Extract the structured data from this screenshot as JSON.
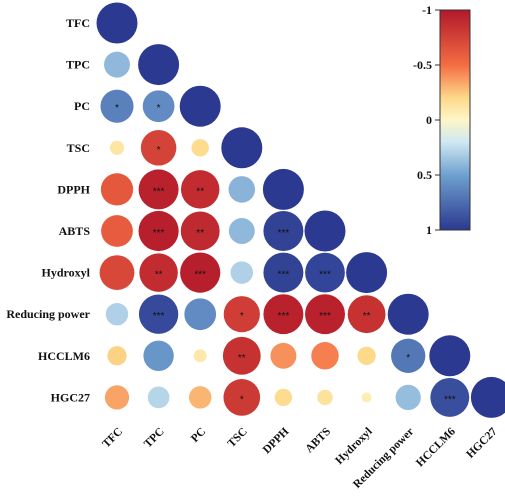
{
  "chart_data": {
    "type": "heatmap",
    "variables": [
      "TFC",
      "TPC",
      "PC",
      "TSC",
      "DPPH",
      "ABTS",
      "Hydroxyl",
      "Reducing power",
      "HCCLM6",
      "HGC27"
    ],
    "matrix": [
      [
        1
      ],
      [
        0.4,
        1
      ],
      [
        0.65,
        0.6,
        1
      ],
      [
        -0.12,
        -0.75,
        -0.18,
        1
      ],
      [
        -0.62,
        -0.95,
        -0.88,
        0.42,
        1
      ],
      [
        -0.6,
        -0.96,
        -0.9,
        0.4,
        0.95,
        1
      ],
      [
        -0.72,
        -0.88,
        -0.96,
        0.3,
        0.95,
        0.94,
        1
      ],
      [
        0.3,
        0.92,
        0.6,
        -0.78,
        -0.95,
        -0.95,
        -0.85,
        1
      ],
      [
        -0.22,
        0.55,
        -0.1,
        -0.85,
        -0.4,
        -0.45,
        -0.2,
        0.7,
        1
      ],
      [
        -0.35,
        0.28,
        -0.3,
        -0.8,
        -0.18,
        -0.14,
        -0.06,
        0.38,
        0.9,
        1
      ]
    ],
    "significance": [
      [
        ""
      ],
      [
        "",
        ""
      ],
      [
        "*",
        "*",
        ""
      ],
      [
        "",
        "*",
        "",
        ""
      ],
      [
        "",
        "***",
        "**",
        "",
        ""
      ],
      [
        "",
        "***",
        "**",
        "",
        "***",
        ""
      ],
      [
        "",
        "**",
        "***",
        "",
        "***",
        "***",
        ""
      ],
      [
        "",
        "***",
        "",
        "*",
        "***",
        "***",
        "**",
        ""
      ],
      [
        "",
        "",
        "",
        "**",
        "",
        "",
        "",
        "*",
        ""
      ],
      [
        "",
        "",
        "",
        "*",
        "",
        "",
        "",
        "",
        "***",
        ""
      ]
    ],
    "colorbar": {
      "ticks": [
        "-1",
        "-0.5",
        "0",
        "0.5",
        "1"
      ],
      "tick_values": [
        -1,
        -0.5,
        0,
        0.5,
        1
      ]
    },
    "colors": {
      "strong_positive": "#2b3990",
      "mid_positive": "#6fa0cf",
      "weak_positive": "#cfe8f2",
      "neutral": "#fdf6c8",
      "weak_negative": "#fdd98a",
      "mid_negative": "#f46d43",
      "strong_negative": "#b2182b"
    }
  }
}
